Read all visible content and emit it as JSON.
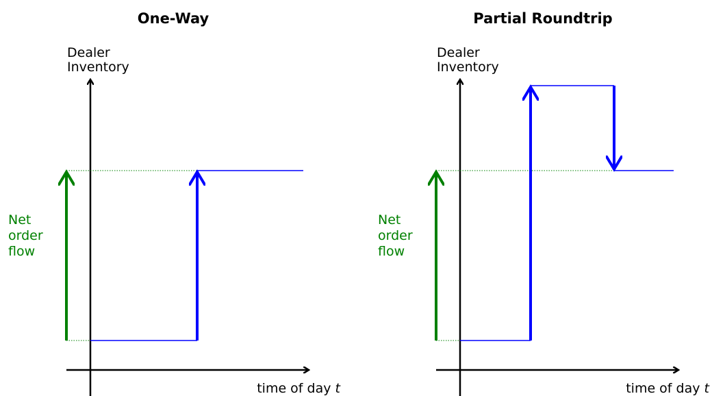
{
  "panels": [
    {
      "title": "One-Way",
      "y_label": [
        "Dealer",
        "Inventory"
      ],
      "x_label": "time of day",
      "x_var": "t",
      "flow_label": [
        "Net",
        "order",
        "flow"
      ]
    },
    {
      "title": "Partial Roundtrip",
      "y_label": [
        "Dealer",
        "Inventory"
      ],
      "x_label": "time of day",
      "x_var": "t",
      "flow_label": [
        "Net",
        "order",
        "flow"
      ]
    }
  ]
}
